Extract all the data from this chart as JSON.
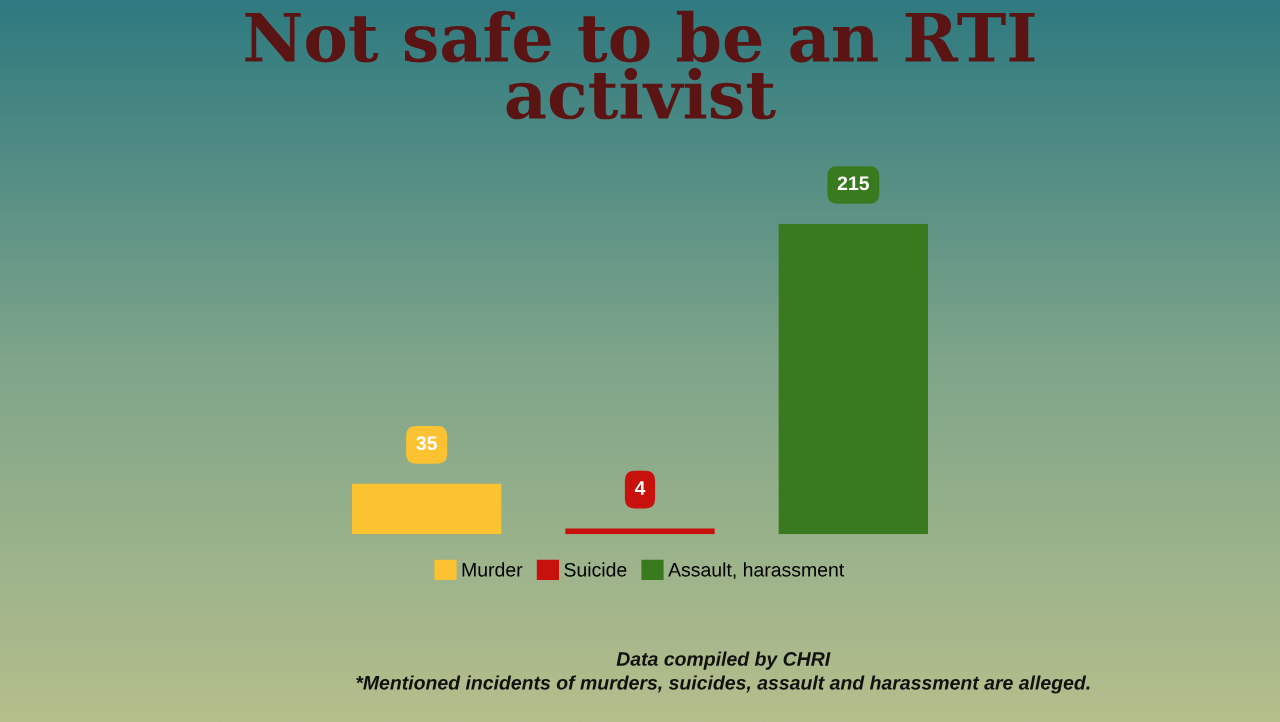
{
  "chart_data": {
    "type": "bar",
    "title": "Not safe to be an RTI\nactivist",
    "categories": [
      null,
      null,
      null
    ],
    "series": [
      {
        "name": "Murder",
        "color": "#fbc232",
        "values": [
          35,
          null,
          null
        ]
      },
      {
        "name": "Suicide",
        "color": "#c8100c",
        "values": [
          null,
          4,
          null
        ]
      },
      {
        "name": "Assault, harassment",
        "color": "#3a7a1e",
        "values": [
          null,
          null,
          215
        ]
      }
    ],
    "stacked": true,
    "data_labels": true,
    "legend": "bottom",
    "annotations": [
      "Data compiled by CHRI",
      "*Mentioned incidents of murders, suicides, assault and harassment are alleged."
    ]
  }
}
